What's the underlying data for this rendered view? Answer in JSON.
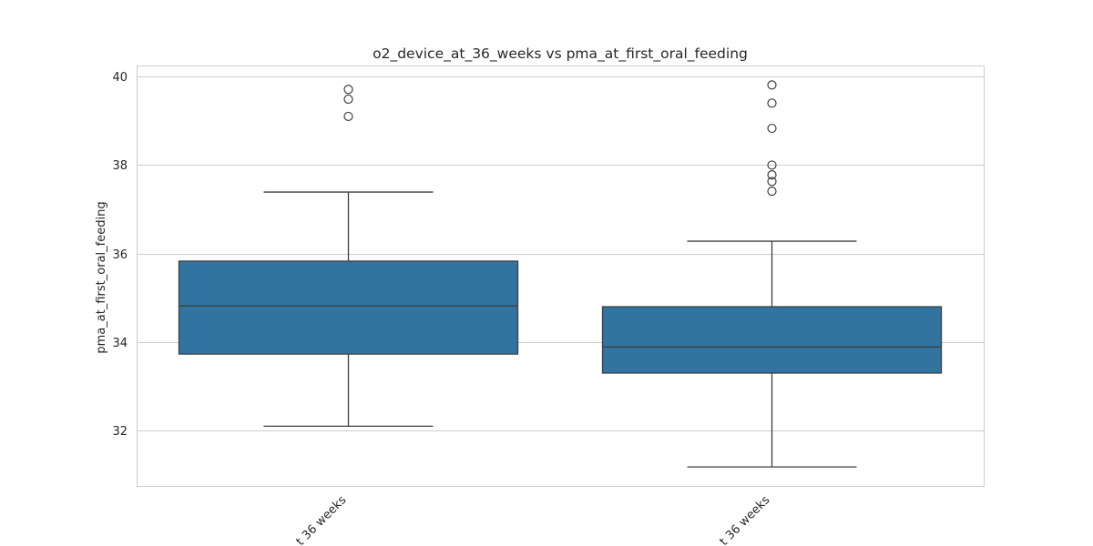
{
  "chart_data": {
    "type": "box",
    "title": "o2_device_at_36_weeks vs pma_at_first_oral_feeding",
    "xlabel": "",
    "ylabel": "pma_at_first_oral_feeding",
    "ylim": [
      30.75,
      40.25
    ],
    "yticks": [
      32,
      34,
      36,
      38,
      40
    ],
    "grid": true,
    "categories": [
      "t 36 weeks",
      "t 36 weeks"
    ],
    "boxes": [
      {
        "whisker_low": 32.1,
        "q1": 33.73,
        "median": 34.82,
        "q3": 35.83,
        "whisker_high": 37.39,
        "outliers": [
          39.1,
          39.49,
          39.71
        ]
      },
      {
        "whisker_low": 31.18,
        "q1": 33.3,
        "median": 33.89,
        "q3": 34.8,
        "whisker_high": 36.28,
        "outliers": [
          37.41,
          37.63,
          37.78,
          38.0,
          38.83,
          39.4,
          39.81
        ]
      }
    ],
    "colors": {
      "box": "#3274a1",
      "line": "#3f3f3f",
      "grid": "#cccccc"
    }
  }
}
